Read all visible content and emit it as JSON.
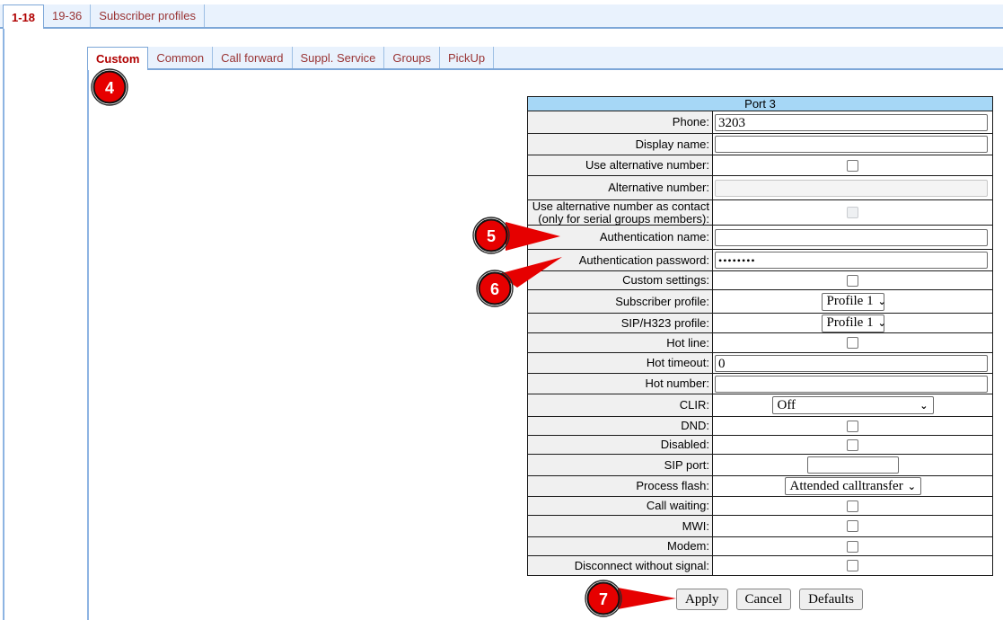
{
  "colors": {
    "tab_bar_bg": "#e9f2fd",
    "tab_border": "#7da7d8",
    "tab_text": "#993333",
    "tab_text_active": "#b00000",
    "table_header_bg": "#a6d7f6",
    "label_cell_bg": "#f0f0f0",
    "annotation_red": "#e60000"
  },
  "tabs_level1": {
    "items": [
      {
        "label": "1-18",
        "active": true
      },
      {
        "label": "19-36",
        "active": false
      },
      {
        "label": "Subscriber profiles",
        "active": false
      }
    ]
  },
  "tabs_level2": {
    "items": [
      {
        "label": "Custom",
        "active": true
      },
      {
        "label": "Common",
        "active": false
      },
      {
        "label": "Call forward",
        "active": false
      },
      {
        "label": "Suppl. Service",
        "active": false
      },
      {
        "label": "Groups",
        "active": false
      },
      {
        "label": "PickUp",
        "active": false
      }
    ]
  },
  "port_panel": {
    "title": "Port 3",
    "rows": [
      {
        "label": "Phone:",
        "control": "text",
        "value": "3203"
      },
      {
        "label": "Display name:",
        "control": "text",
        "value": ""
      },
      {
        "label": "Use alternative number:",
        "control": "checkbox",
        "checked": false
      },
      {
        "label": "Alternative number:",
        "control": "text",
        "value": "",
        "disabled": true
      },
      {
        "label": "Use alternative number as contact (only for serial groups members):",
        "label_lines": [
          "Use alternative number as contact",
          "(only for serial groups members):"
        ],
        "control": "checkbox",
        "checked": false,
        "disabled": true
      },
      {
        "label": "Authentication name:",
        "control": "text",
        "value": ""
      },
      {
        "label": "Authentication password:",
        "control": "password",
        "value": "••••••••"
      },
      {
        "label": "Custom settings:",
        "control": "checkbox",
        "checked": false
      },
      {
        "label": "Subscriber profile:",
        "control": "select",
        "value": "Profile 1"
      },
      {
        "label": "SIP/H323 profile:",
        "control": "select",
        "value": "Profile 1"
      },
      {
        "label": "Hot line:",
        "control": "checkbox",
        "checked": false
      },
      {
        "label": "Hot timeout:",
        "control": "text",
        "value": "0"
      },
      {
        "label": "Hot number:",
        "control": "text",
        "value": ""
      },
      {
        "label": "CLIR:",
        "control": "select",
        "value": "Off"
      },
      {
        "label": "DND:",
        "control": "checkbox",
        "checked": false
      },
      {
        "label": "Disabled:",
        "control": "checkbox",
        "checked": false
      },
      {
        "label": "SIP port:",
        "control": "text-short",
        "value": ""
      },
      {
        "label": "Process flash:",
        "control": "select",
        "value": "Attended calltransfer"
      },
      {
        "label": "Call waiting:",
        "control": "checkbox",
        "checked": false
      },
      {
        "label": "MWI:",
        "control": "checkbox",
        "checked": false
      },
      {
        "label": "Modem:",
        "control": "checkbox",
        "checked": false
      },
      {
        "label": "Disconnect without signal:",
        "control": "checkbox",
        "checked": false
      }
    ]
  },
  "buttons": [
    {
      "label": "Apply"
    },
    {
      "label": "Cancel"
    },
    {
      "label": "Defaults"
    }
  ],
  "annotations": [
    {
      "number": "4"
    },
    {
      "number": "5"
    },
    {
      "number": "6"
    },
    {
      "number": "7"
    }
  ]
}
